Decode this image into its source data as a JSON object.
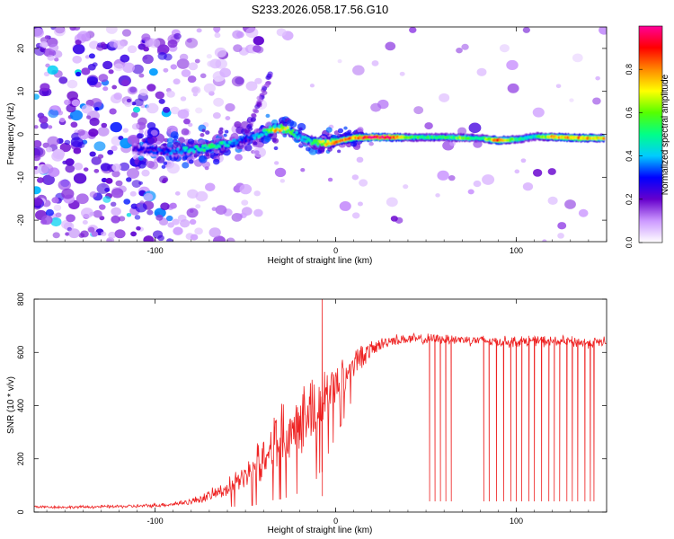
{
  "title": "S233.2026.058.17.56.G10",
  "chart_data": [
    {
      "type": "heatmap",
      "title": "S233.2026.058.17.56.G10",
      "xlabel": "Height of straight line (km)",
      "ylabel": "Frequency (Hz)",
      "xlim": [
        -167,
        150
      ],
      "ylim": [
        -25,
        25
      ],
      "x_ticks": [
        -100,
        0,
        100
      ],
      "x_tick_labels": [
        "-100",
        "0",
        "100"
      ],
      "y_ticks": [
        -20,
        -10,
        0,
        10,
        20
      ],
      "y_tick_labels": [
        "-20",
        "-10",
        "0",
        "10",
        "20"
      ],
      "colorbar": {
        "label": "Normalized spectral amplitude",
        "range": [
          0,
          1
        ],
        "ticks": [
          0.0,
          0.2,
          0.4,
          0.6,
          0.8
        ],
        "tick_labels": [
          "0.0",
          "0.2",
          "0.4",
          "0.6",
          "0.8"
        ],
        "stops": [
          "#ffffff",
          "#cc99ff",
          "#6600cc",
          "#0000ff",
          "#00ccff",
          "#00ff88",
          "#55ff00",
          "#ffff00",
          "#ff8800",
          "#ff0000",
          "#ff0099"
        ]
      },
      "signal_track": {
        "description_points_x": [
          -110,
          -100,
          -90,
          -80,
          -70,
          -60,
          -50,
          -40,
          -35,
          -30,
          -25,
          -20,
          -15,
          -10,
          -5,
          0,
          10,
          20,
          30,
          40,
          50,
          60,
          70,
          80,
          90,
          100,
          110,
          120,
          130,
          140,
          148
        ],
        "frequency_hz": [
          -3.5,
          -3.8,
          -4.0,
          -3.6,
          -3.0,
          -2.3,
          -1.2,
          0.3,
          1.1,
          1.4,
          0.9,
          -0.6,
          -1.6,
          -1.9,
          -2.0,
          -1.7,
          -0.8,
          -0.7,
          -0.7,
          -0.7,
          -0.7,
          -0.7,
          -0.8,
          -0.9,
          -1.4,
          -1.2,
          -0.5,
          -0.6,
          -0.8,
          -0.9,
          -0.9
        ],
        "amplitude": [
          0.25,
          0.3,
          0.35,
          0.45,
          0.5,
          0.45,
          0.3,
          0.45,
          0.7,
          0.75,
          0.55,
          0.4,
          0.45,
          0.55,
          0.7,
          0.75,
          0.8,
          0.95,
          0.95,
          0.55,
          0.5,
          0.5,
          0.6,
          0.45,
          0.85,
          0.5,
          0.45,
          0.75,
          0.8,
          0.75,
          0.7
        ]
      }
    },
    {
      "type": "line",
      "xlabel": "Height of straight line (km)",
      "ylabel": "SNR (10 * v/v)",
      "xlim": [
        -167,
        150
      ],
      "ylim": [
        0,
        800
      ],
      "x_ticks": [
        -100,
        0,
        100
      ],
      "x_tick_labels": [
        "-100",
        "0",
        "100"
      ],
      "y_ticks": [
        0,
        200,
        400,
        600,
        800
      ],
      "y_tick_labels": [
        "0",
        "200",
        "400",
        "600",
        "800"
      ],
      "color": "#ee2222",
      "series": [
        {
          "name": "SNR",
          "x": [
            -167,
            -150,
            -130,
            -110,
            -100,
            -90,
            -80,
            -70,
            -60,
            -50,
            -45,
            -40,
            -35,
            -30,
            -25,
            -20,
            -15,
            -10,
            -5,
            0,
            5,
            10,
            15,
            20,
            25,
            30,
            40,
            50,
            60,
            70,
            80,
            90,
            100,
            110,
            120,
            130,
            140,
            150
          ],
          "y": [
            20,
            18,
            20,
            22,
            25,
            30,
            40,
            60,
            90,
            130,
            170,
            210,
            260,
            300,
            330,
            360,
            380,
            400,
            440,
            480,
            520,
            560,
            590,
            610,
            630,
            645,
            650,
            648,
            650,
            648,
            645,
            640,
            640,
            645,
            640,
            640,
            635,
            640
          ],
          "noise_band": [
            6,
            6,
            7,
            8,
            9,
            10,
            15,
            25,
            40,
            60,
            80,
            100,
            120,
            140,
            150,
            160,
            160,
            150,
            130,
            110,
            90,
            70,
            50,
            40,
            30,
            25,
            25,
            25,
            25,
            25,
            25,
            25,
            25,
            25,
            25,
            25,
            25,
            25
          ]
        }
      ],
      "spikes": {
        "x": [
          -7.5
        ],
        "y": [
          800
        ]
      },
      "dropouts_x": [
        52,
        55,
        58,
        61,
        64,
        82,
        85,
        89,
        93,
        97,
        100,
        103,
        107,
        110,
        114,
        118,
        121,
        124,
        128,
        131,
        134,
        138,
        141,
        143
      ],
      "dropout_y": 40
    }
  ]
}
